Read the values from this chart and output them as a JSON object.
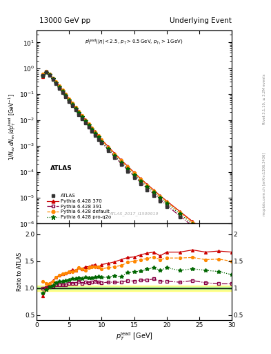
{
  "title_left": "13000 GeV pp",
  "title_right": "Underlying Event",
  "annotation": "ATLAS_2017_I1509919",
  "right_label": "mcplots.cern.ch [arXiv:1306.3436]",
  "right_label2": "Rivet 3.1.10, ≥ 3.2M events",
  "xlim": [
    0,
    30
  ],
  "ylim_main": [
    1e-06,
    30
  ],
  "ylim_ratio": [
    0.4,
    2.2
  ],
  "yticks_ratio": [
    0.5,
    1.0,
    1.5,
    2.0
  ],
  "atlas_x": [
    1.0,
    1.5,
    2.0,
    2.5,
    3.0,
    3.5,
    4.0,
    4.5,
    5.0,
    5.5,
    6.0,
    6.5,
    7.0,
    7.5,
    8.0,
    8.5,
    9.0,
    9.5,
    10.0,
    11.0,
    12.0,
    13.0,
    14.0,
    15.0,
    16.0,
    17.0,
    18.0,
    19.0,
    20.0,
    22.0,
    24.0,
    26.0,
    28.0,
    30.0
  ],
  "atlas_y": [
    0.55,
    0.72,
    0.55,
    0.38,
    0.25,
    0.17,
    0.115,
    0.078,
    0.052,
    0.035,
    0.024,
    0.016,
    0.011,
    0.0075,
    0.0052,
    0.0036,
    0.0025,
    0.0018,
    0.00125,
    0.00065,
    0.00035,
    0.00019,
    0.000105,
    6e-05,
    3.4e-05,
    2e-05,
    1.2e-05,
    7.5e-06,
    4.5e-06,
    1.8e-06,
    7e-07,
    3e-07,
    1.3e-07,
    6e-08
  ],
  "atlas_color": "#333333",
  "py370_x": [
    1.0,
    1.5,
    2.0,
    2.5,
    3.0,
    3.5,
    4.0,
    4.5,
    5.0,
    5.5,
    6.0,
    6.5,
    7.0,
    7.5,
    8.0,
    8.5,
    9.0,
    9.5,
    10.0,
    11.0,
    12.0,
    13.0,
    14.0,
    15.0,
    16.0,
    17.0,
    18.0,
    19.0,
    20.0,
    22.0,
    24.0,
    26.0,
    28.0,
    30.0
  ],
  "py370_y": [
    0.47,
    0.72,
    0.6,
    0.43,
    0.3,
    0.21,
    0.145,
    0.1,
    0.068,
    0.047,
    0.032,
    0.022,
    0.015,
    0.0105,
    0.0073,
    0.0051,
    0.0036,
    0.0025,
    0.0018,
    0.00095,
    0.00052,
    0.00029,
    0.000165,
    9.5e-05,
    5.5e-05,
    3.3e-05,
    2e-05,
    1.2e-05,
    7.5e-06,
    3e-06,
    1.2e-06,
    5e-07,
    2.2e-07,
    1e-07
  ],
  "py370_color": "#cc0000",
  "py391_x": [
    1.0,
    1.5,
    2.0,
    2.5,
    3.0,
    3.5,
    4.0,
    4.5,
    5.0,
    5.5,
    6.0,
    6.5,
    7.0,
    7.5,
    8.0,
    8.5,
    9.0,
    9.5,
    10.0,
    11.0,
    12.0,
    13.0,
    14.0,
    15.0,
    16.0,
    17.0,
    18.0,
    19.0,
    20.0,
    22.0,
    24.0,
    26.0,
    28.0,
    30.0
  ],
  "py391_y": [
    0.55,
    0.73,
    0.56,
    0.39,
    0.265,
    0.18,
    0.122,
    0.083,
    0.056,
    0.038,
    0.026,
    0.018,
    0.012,
    0.0083,
    0.0057,
    0.004,
    0.0028,
    0.002,
    0.00138,
    0.00072,
    0.00039,
    0.00021,
    0.00012,
    6.8e-05,
    3.9e-05,
    2.3e-05,
    1.4e-05,
    8.5e-06,
    5.1e-06,
    2e-06,
    8e-07,
    3.3e-07,
    1.4e-07,
    6.5e-08
  ],
  "py391_color": "#880044",
  "pydef_x": [
    1.0,
    1.5,
    2.0,
    2.5,
    3.0,
    3.5,
    4.0,
    4.5,
    5.0,
    5.5,
    6.0,
    6.5,
    7.0,
    7.5,
    8.0,
    8.5,
    9.0,
    9.5,
    10.0,
    11.0,
    12.0,
    13.0,
    14.0,
    15.0,
    16.0,
    17.0,
    18.0,
    19.0,
    20.0,
    22.0,
    24.0,
    26.0,
    28.0,
    30.0
  ],
  "pydef_y": [
    0.62,
    0.78,
    0.6,
    0.43,
    0.3,
    0.21,
    0.145,
    0.1,
    0.068,
    0.046,
    0.032,
    0.022,
    0.015,
    0.01,
    0.0072,
    0.005,
    0.0035,
    0.0025,
    0.0017,
    0.0009,
    0.00049,
    0.00027,
    0.000155,
    9e-05,
    5.2e-05,
    3.1e-05,
    1.9e-05,
    1.15e-05,
    7e-06,
    2.8e-06,
    1.1e-06,
    4.6e-07,
    2e-07,
    9e-08
  ],
  "pydef_color": "#ff8800",
  "pyq2o_x": [
    1.0,
    1.5,
    2.0,
    2.5,
    3.0,
    3.5,
    4.0,
    4.5,
    5.0,
    5.5,
    6.0,
    6.5,
    7.0,
    7.5,
    8.0,
    8.5,
    9.0,
    9.5,
    10.0,
    11.0,
    12.0,
    13.0,
    14.0,
    15.0,
    16.0,
    17.0,
    18.0,
    19.0,
    20.0,
    22.0,
    24.0,
    26.0,
    28.0,
    30.0
  ],
  "pyq2o_y": [
    0.5,
    0.7,
    0.56,
    0.4,
    0.275,
    0.19,
    0.13,
    0.089,
    0.06,
    0.041,
    0.028,
    0.019,
    0.013,
    0.009,
    0.0062,
    0.0043,
    0.003,
    0.0022,
    0.0015,
    0.00078,
    0.00043,
    0.00023,
    0.000135,
    7.8e-05,
    4.5e-05,
    2.7e-05,
    1.65e-05,
    1e-05,
    6.2e-06,
    2.4e-06,
    9.5e-07,
    4e-07,
    1.7e-07,
    7.5e-08
  ],
  "pyq2o_color": "#006600",
  "ratio_x": [
    1.0,
    1.5,
    2.0,
    2.5,
    3.0,
    3.5,
    4.0,
    4.5,
    5.0,
    5.5,
    6.0,
    6.5,
    7.0,
    7.5,
    8.0,
    8.5,
    9.0,
    9.5,
    10.0,
    11.0,
    12.0,
    13.0,
    14.0,
    15.0,
    16.0,
    17.0,
    18.0,
    19.0,
    20.0,
    22.0,
    24.0,
    26.0,
    28.0,
    30.0
  ],
  "ratio_py370": [
    0.85,
    1.0,
    1.09,
    1.14,
    1.2,
    1.24,
    1.26,
    1.28,
    1.31,
    1.34,
    1.33,
    1.38,
    1.36,
    1.4,
    1.4,
    1.42,
    1.44,
    1.39,
    1.44,
    1.46,
    1.49,
    1.53,
    1.57,
    1.58,
    1.62,
    1.65,
    1.67,
    1.6,
    1.67,
    1.67,
    1.71,
    1.67,
    1.69,
    1.67
  ],
  "ratio_py391": [
    1.0,
    1.01,
    1.02,
    1.03,
    1.06,
    1.06,
    1.06,
    1.06,
    1.08,
    1.09,
    1.08,
    1.13,
    1.09,
    1.11,
    1.1,
    1.11,
    1.12,
    1.11,
    1.1,
    1.11,
    1.11,
    1.11,
    1.14,
    1.13,
    1.15,
    1.15,
    1.17,
    1.13,
    1.13,
    1.11,
    1.14,
    1.1,
    1.08,
    1.08
  ],
  "ratio_pydef": [
    1.13,
    1.08,
    1.09,
    1.13,
    1.2,
    1.24,
    1.26,
    1.28,
    1.31,
    1.31,
    1.33,
    1.38,
    1.36,
    1.33,
    1.38,
    1.39,
    1.4,
    1.39,
    1.36,
    1.38,
    1.4,
    1.42,
    1.48,
    1.5,
    1.53,
    1.55,
    1.58,
    1.53,
    1.56,
    1.56,
    1.57,
    1.53,
    1.54,
    1.5
  ],
  "ratio_pyq2o": [
    0.91,
    0.97,
    1.02,
    1.05,
    1.1,
    1.12,
    1.13,
    1.14,
    1.15,
    1.17,
    1.17,
    1.19,
    1.18,
    1.2,
    1.19,
    1.19,
    1.2,
    1.22,
    1.2,
    1.2,
    1.23,
    1.21,
    1.29,
    1.3,
    1.32,
    1.35,
    1.38,
    1.33,
    1.38,
    1.33,
    1.36,
    1.33,
    1.31,
    1.25
  ],
  "band_yellow": [
    0.95,
    1.05
  ],
  "band_green": [
    0.98,
    1.02
  ]
}
